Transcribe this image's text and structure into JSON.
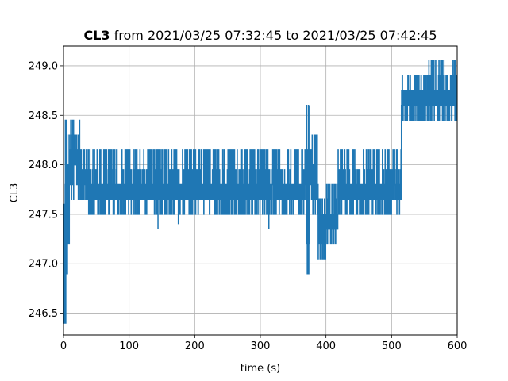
{
  "chart_data": {
    "type": "line",
    "title": {
      "bold": "CL3",
      "rest": " from 2021/03/25 07:32:45 to 2021/03/25 07:42:45"
    },
    "xlabel": "time (s)",
    "ylabel": "CL3",
    "xlim": [
      0,
      600
    ],
    "ylim": [
      246.28,
      249.2
    ],
    "xticks": [
      0,
      100,
      200,
      300,
      400,
      500,
      600
    ],
    "xtick_labels": [
      "0",
      "100",
      "200",
      "300",
      "400",
      "500",
      "600"
    ],
    "yticks": [
      246.5,
      247.0,
      247.5,
      248.0,
      248.5,
      249.0
    ],
    "ytick_labels": [
      "246.5",
      "247.0",
      "247.5",
      "248.0",
      "248.5",
      "249.0"
    ],
    "grid": true,
    "series": [
      {
        "color": "#1f77b4",
        "segments": [
          {
            "t0": 0,
            "t1": 2,
            "levels": [
              246.4,
              246.6,
              247.0,
              247.6
            ]
          },
          {
            "t0": 2,
            "t1": 6,
            "levels": [
              246.4,
              246.9,
              247.8,
              248.3,
              248.45
            ]
          },
          {
            "t0": 6,
            "t1": 10,
            "levels": [
              247.2,
              247.8,
              248.0,
              248.3,
              248.45
            ]
          },
          {
            "t0": 10,
            "t1": 25,
            "levels": [
              247.65,
              247.8,
              248.0,
              248.15,
              248.3,
              248.45
            ]
          },
          {
            "t0": 25,
            "t1": 370,
            "levels": [
              247.5,
              247.65,
              247.8,
              247.95,
              248.15
            ]
          },
          {
            "t0": 370,
            "t1": 378,
            "levels": [
              246.9,
              247.2,
              247.8,
              248.15,
              248.4,
              248.6
            ]
          },
          {
            "t0": 378,
            "t1": 388,
            "levels": [
              247.5,
              247.65,
              247.8,
              248.0,
              248.3
            ]
          },
          {
            "t0": 388,
            "t1": 400,
            "levels": [
              247.05,
              247.2,
              247.5,
              247.65
            ]
          },
          {
            "t0": 400,
            "t1": 418,
            "levels": [
              247.2,
              247.35,
              247.5,
              247.65,
              247.8
            ]
          },
          {
            "t0": 418,
            "t1": 515,
            "levels": [
              247.5,
              247.65,
              247.8,
              247.95,
              248.15
            ]
          },
          {
            "t0": 515,
            "t1": 555,
            "levels": [
              248.45,
              248.6,
              248.75,
              248.9
            ]
          },
          {
            "t0": 555,
            "t1": 600,
            "levels": [
              248.45,
              248.6,
              248.75,
              248.9,
              249.05
            ]
          }
        ],
        "spikes": [
          {
            "t": 4,
            "value": 246.9
          },
          {
            "t": 8,
            "value": 247.2
          },
          {
            "t": 144,
            "value": 247.35
          },
          {
            "t": 175,
            "value": 247.4
          },
          {
            "t": 313,
            "value": 247.35
          },
          {
            "t": 373,
            "value": 246.9
          },
          {
            "t": 374,
            "value": 248.6
          }
        ]
      }
    ]
  }
}
